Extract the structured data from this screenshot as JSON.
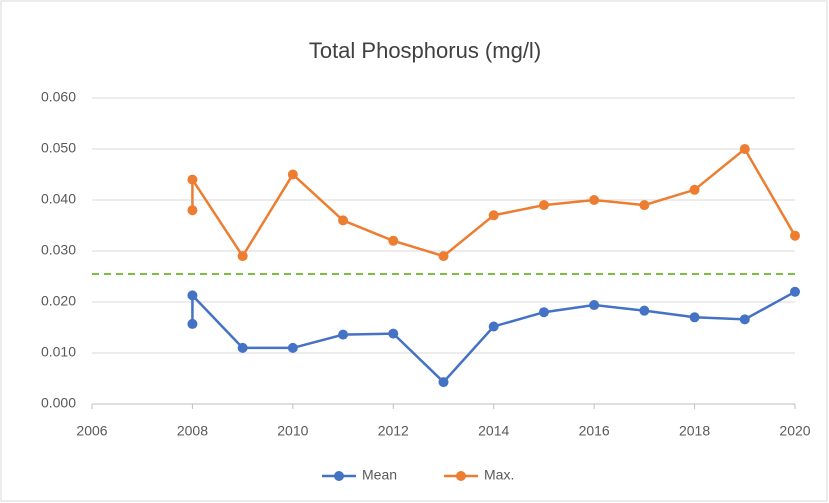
{
  "chart_data": {
    "type": "line",
    "title": "Total Phosphorus (mg/l)",
    "x": [
      2008,
      2008,
      2009,
      2010,
      2011,
      2012,
      2013,
      2014,
      2015,
      2016,
      2017,
      2018,
      2019,
      2020
    ],
    "series": [
      {
        "name": "Mean",
        "color": "#4472c4",
        "values": [
          0.0157,
          0.0213,
          0.011,
          0.011,
          0.0136,
          0.0138,
          0.0043,
          0.0152,
          0.018,
          0.0194,
          0.0183,
          0.017,
          0.0166,
          0.022
        ]
      },
      {
        "name": "Max.",
        "color": "#ed7d31",
        "values": [
          0.038,
          0.044,
          0.029,
          0.045,
          0.036,
          0.032,
          0.029,
          0.037,
          0.039,
          0.04,
          0.039,
          0.042,
          0.05,
          0.033
        ]
      }
    ],
    "reference_line": {
      "value": 0.0255,
      "color": "#7ac143",
      "dashed": true
    },
    "xlim": [
      2006,
      2020
    ],
    "xticks": [
      2006,
      2008,
      2010,
      2012,
      2014,
      2016,
      2018,
      2020
    ],
    "ylim": [
      0,
      0.06
    ],
    "yticks": [
      {
        "value": 0,
        "label": "0.000"
      },
      {
        "value": 0.01,
        "label": "0.010"
      },
      {
        "value": 0.02,
        "label": "0.020"
      },
      {
        "value": 0.03,
        "label": "0.030"
      },
      {
        "value": 0.04,
        "label": "0.040"
      },
      {
        "value": 0.05,
        "label": "0.050"
      },
      {
        "value": 0.06,
        "label": "0.060"
      }
    ],
    "grid": true,
    "legend": "bottom"
  }
}
